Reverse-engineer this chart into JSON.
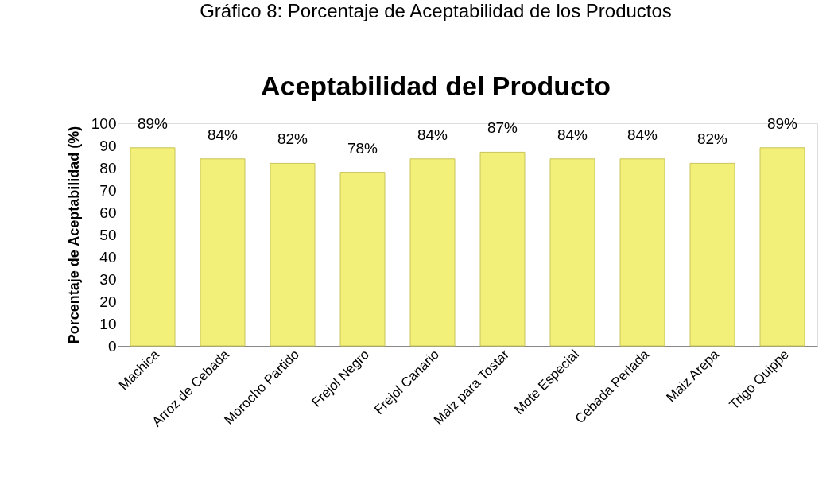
{
  "chart_data": {
    "type": "bar",
    "title": "Aceptabilidad del Producto",
    "ylabel": "Porcentaje de Aceptabilidad (%)",
    "annotations": [
      "Gráfico 8: Porcentaje de Aceptabilidad de los Productos"
    ],
    "categories": [
      "Machica",
      "Arroz de Cebada",
      "Morocho Partido",
      "Frejol Negro",
      "Frejol Canario",
      "Maiz para Tostar",
      "Mote Especial",
      "Cebada Perlada",
      "Maiz Arepa",
      "Trigo Quippe"
    ],
    "values": [
      89,
      84,
      82,
      78,
      84,
      87,
      84,
      84,
      82,
      89
    ],
    "value_labels": [
      "89%",
      "84%",
      "82%",
      "78%",
      "84%",
      "87%",
      "84%",
      "84%",
      "82%",
      "89%"
    ],
    "color": "#f3f07a",
    "ylim": [
      0,
      100
    ],
    "yticks": [
      0,
      10,
      20,
      30,
      40,
      50,
      60,
      70,
      80,
      90,
      100
    ],
    "grid": false
  }
}
